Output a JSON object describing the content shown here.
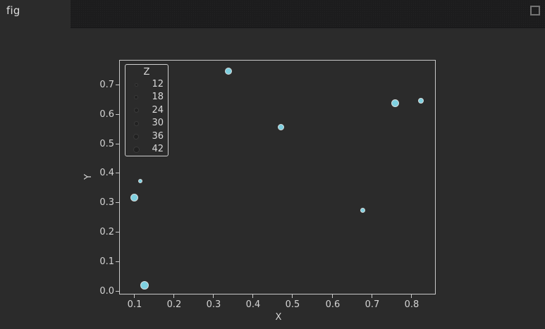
{
  "window": {
    "tab_label": "fig"
  },
  "colors": {
    "window_bg": "#2b2b2b",
    "tabbar_bg": "#1c1c1d",
    "text": "#d4d4d4",
    "spine": "#c8c8c8",
    "point_fill": "#7ed0e0",
    "point_edge": "#d7dcdc",
    "legend_marker_fill": "#212121",
    "legend_marker_edge": "#3a3a3a"
  },
  "chart_data": {
    "type": "scatter",
    "title": "",
    "xlabel": "X",
    "ylabel": "Y",
    "xlim": [
      0.061,
      0.861
    ],
    "ylim": [
      -0.01,
      0.786
    ],
    "x_ticks": [
      0.1,
      0.2,
      0.3,
      0.4,
      0.5,
      0.6,
      0.7,
      0.8
    ],
    "y_ticks": [
      0.0,
      0.1,
      0.2,
      0.3,
      0.4,
      0.5,
      0.6,
      0.7
    ],
    "grid": false,
    "legend": {
      "title": "Z",
      "position": "upper-left",
      "sizes": [
        12,
        18,
        24,
        30,
        36,
        42
      ]
    },
    "points": [
      {
        "x": 0.1,
        "y": 0.318,
        "z": 40
      },
      {
        "x": 0.114,
        "y": 0.374,
        "z": 13
      },
      {
        "x": 0.125,
        "y": 0.02,
        "z": 42
      },
      {
        "x": 0.337,
        "y": 0.748,
        "z": 30
      },
      {
        "x": 0.47,
        "y": 0.557,
        "z": 28
      },
      {
        "x": 0.677,
        "y": 0.275,
        "z": 15
      },
      {
        "x": 0.759,
        "y": 0.638,
        "z": 36
      },
      {
        "x": 0.823,
        "y": 0.647,
        "z": 18
      }
    ]
  }
}
